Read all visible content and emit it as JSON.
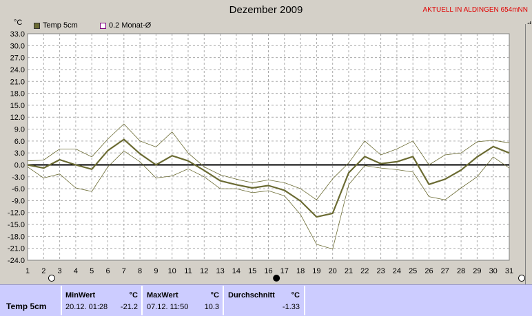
{
  "header": {
    "title": "Dezember 2009",
    "station": "AKTUELL IN ALDINGEN 654mNN",
    "unit_left": "°C",
    "unit_right": "d"
  },
  "legend": [
    {
      "label": "Temp 5cm",
      "color": "#6b6b33",
      "filled": true
    },
    {
      "label": "0.2 Monat-Ø",
      "color": "#800080",
      "filled": false
    }
  ],
  "chart_data": {
    "type": "line",
    "x": [
      1,
      2,
      3,
      4,
      5,
      6,
      7,
      8,
      9,
      10,
      11,
      12,
      13,
      14,
      15,
      16,
      17,
      18,
      19,
      20,
      21,
      22,
      23,
      24,
      25,
      26,
      27,
      28,
      29,
      30,
      31
    ],
    "ylim": [
      -24,
      33
    ],
    "ytick_step": 3,
    "yticks": [
      "33.0",
      "30.0",
      "27.0",
      "24.0",
      "21.0",
      "18.0",
      "15.0",
      "12.0",
      "9.0",
      "6.0",
      "3.0",
      "0.0",
      "-3.0",
      "-6.0",
      "-9.0",
      "-12.0",
      "-15.0",
      "-18.0",
      "-21.0",
      "-24.0"
    ],
    "xticks": [
      "1",
      "2",
      "3",
      "4",
      "5",
      "6",
      "7",
      "8",
      "9",
      "10",
      "11",
      "12",
      "13",
      "14",
      "15",
      "16",
      "17",
      "18",
      "19",
      "20",
      "21",
      "22",
      "23",
      "24",
      "25",
      "26",
      "27",
      "28",
      "29",
      "30",
      "31"
    ],
    "grid": true,
    "legend_position": "top-left",
    "series": [
      {
        "name": "Temp 5cm",
        "color": "#6b6b33",
        "width": 2.2,
        "values": [
          0,
          -0.8,
          1.3,
          0,
          -1.1,
          3.6,
          6.4,
          2.8,
          0,
          2.3,
          1.0,
          -1.4,
          -4.0,
          -5.0,
          -5.8,
          -5.2,
          -6.4,
          -9.1,
          -13.1,
          -12.2,
          -2.0,
          2.1,
          0.3,
          0.8,
          2.1,
          -4.9,
          -3.6,
          -1.3,
          2.0,
          4.6,
          3.0
        ]
      },
      {
        "name": "",
        "color": "#6b6b33",
        "width": 0.8,
        "values": [
          1.0,
          1.2,
          4.0,
          4.0,
          2.0,
          6.5,
          10.3,
          6.0,
          4.5,
          8.3,
          3.0,
          -0.5,
          -2.5,
          -3.6,
          -4.5,
          -3.8,
          -4.5,
          -6.0,
          -8.8,
          -3.5,
          0.5,
          6.0,
          2.5,
          4.0,
          6.0,
          0,
          2.5,
          3.0,
          5.8,
          6.2,
          5.5
        ]
      },
      {
        "name": "",
        "color": "#6b6b33",
        "width": 0.8,
        "values": [
          -0.5,
          -3.3,
          -2.3,
          -5.8,
          -6.7,
          -0.5,
          3.5,
          0.8,
          -3.3,
          -2.8,
          -1.0,
          -3.0,
          -6.0,
          -6.0,
          -7.0,
          -6.5,
          -7.8,
          -12.5,
          -20.0,
          -21.2,
          -5.0,
          -0.2,
          -0.8,
          -1.2,
          -1.8,
          -8.0,
          -8.8,
          -5.8,
          -3.0,
          2.0,
          -0.8
        ]
      }
    ]
  },
  "markers": [
    {
      "x": 2.5,
      "phase": "full"
    },
    {
      "x": 16.5,
      "phase": "new"
    },
    {
      "x": 31,
      "phase": "half"
    }
  ],
  "footer": {
    "row_label": "Temp 5cm",
    "min_label": "MinWert",
    "min_unit": "°C",
    "min_time": "20.12. 01:28",
    "min_value": "-21.2",
    "max_label": "MaxWert",
    "max_unit": "°C",
    "max_time": "07.12. 11:50",
    "max_value": "10.3",
    "avg_label": "Durchschnitt",
    "avg_unit": "°C",
    "avg_value": "-1.33"
  }
}
